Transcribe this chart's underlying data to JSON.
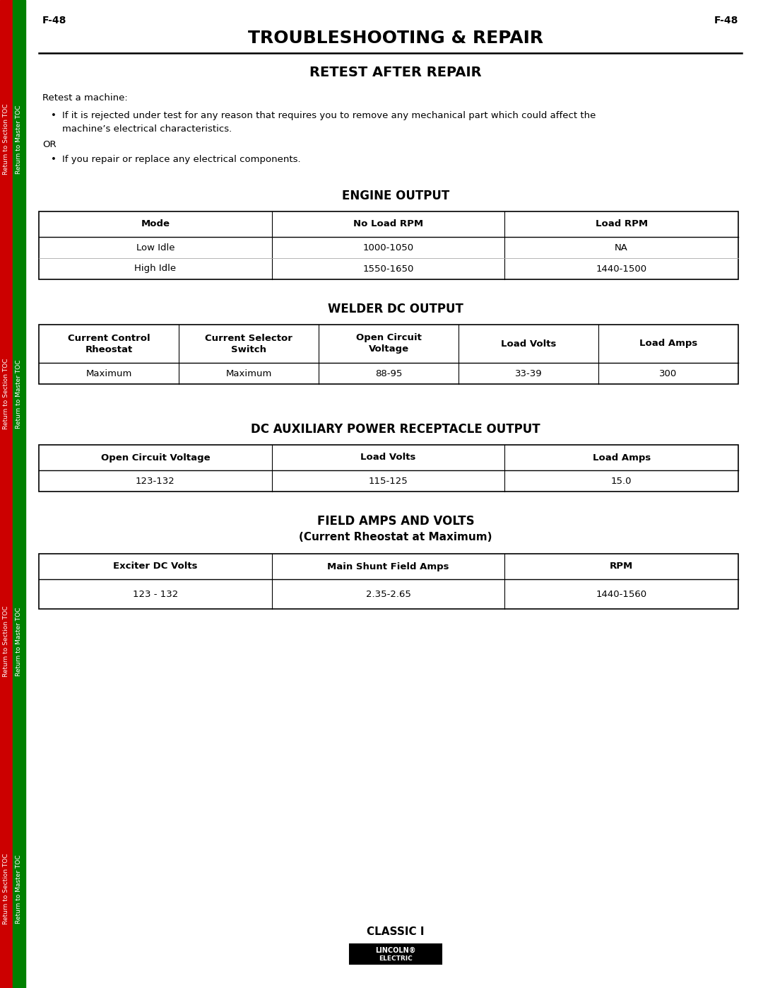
{
  "page_label": "F-48",
  "main_title": "TROUBLESHOOTING & REPAIR",
  "section_title": "RETEST AFTER REPAIR",
  "intro_text": "Retest a machine:",
  "bullet1_line1": "If it is rejected under test for any reason that requires you to remove any mechanical part which could affect the",
  "bullet1_line2": "machine’s electrical characteristics.",
  "or_text": "OR",
  "bullet2": "If you repair or replace any electrical components.",
  "engine_title": "ENGINE OUTPUT",
  "engine_headers": [
    "Mode",
    "No Load RPM",
    "Load RPM"
  ],
  "engine_rows": [
    [
      "Low Idle",
      "1000-1050",
      "NA"
    ],
    [
      "High Idle",
      "1550-1650",
      "1440-1500"
    ]
  ],
  "welder_title": "WELDER DC OUTPUT",
  "welder_headers": [
    "Current Control\nRheostat",
    "Current Selector\nSwitch",
    "Open Circuit\nVoltage",
    "Load Volts",
    "Load Amps"
  ],
  "welder_rows": [
    [
      "Maximum",
      "Maximum",
      "88-95",
      "33-39",
      "300"
    ]
  ],
  "dc_title": "DC AUXILIARY POWER RECEPTACLE OUTPUT",
  "dc_headers": [
    "Open Circuit Voltage",
    "Load Volts",
    "Load Amps"
  ],
  "dc_rows": [
    [
      "123-132",
      "115-125",
      "15.0"
    ]
  ],
  "field_title": "FIELD AMPS AND VOLTS",
  "field_subtitle": "(Current Rheostat at Maximum)",
  "field_headers": [
    "Exciter DC Volts",
    "Main Shunt Field Amps",
    "RPM"
  ],
  "field_rows": [
    [
      "123 - 132",
      "2.35-2.65",
      "1440-1560"
    ]
  ],
  "footer_model": "CLASSIC I",
  "side_text_red": "Return to Section TOC",
  "side_text_green": "Return to Master TOC",
  "bg_color": "#ffffff",
  "text_color": "#000000",
  "side_red": "#cc0000",
  "side_green": "#008000"
}
